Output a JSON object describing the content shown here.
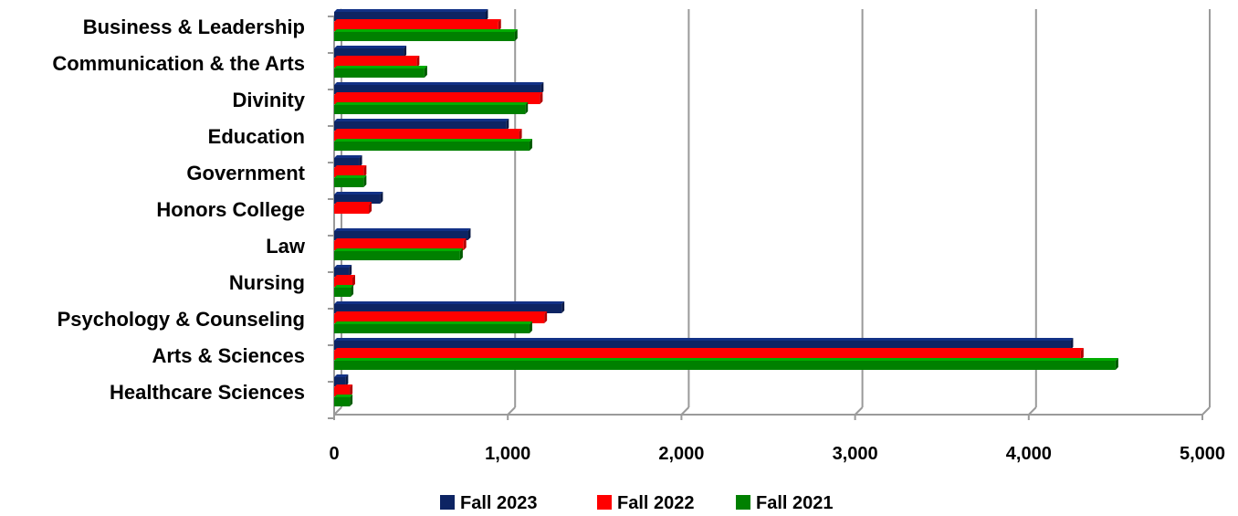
{
  "chart_data": {
    "type": "bar",
    "orientation": "horizontal",
    "title": "",
    "xlabel": "",
    "ylabel": "",
    "categories": [
      "Business & Leadership",
      "Communication & the Arts",
      "Divinity",
      "Education",
      "Government",
      "Honors College",
      "Law",
      "Nursing",
      "Psychology & Counseling",
      "Arts & Sciences",
      "Healthcare Sciences"
    ],
    "series": [
      {
        "name": "Fall 2023",
        "color": "#0d2463",
        "values": [
          870,
          400,
          1190,
          990,
          145,
          265,
          770,
          85,
          1310,
          4240,
          65
        ]
      },
      {
        "name": "Fall 2022",
        "color": "#ff0000",
        "values": [
          945,
          475,
          1185,
          1065,
          170,
          200,
          745,
          105,
          1210,
          4300,
          90
        ]
      },
      {
        "name": "Fall 2021",
        "color": "#008000",
        "values": [
          1040,
          520,
          1100,
          1125,
          170,
          0,
          725,
          95,
          1125,
          4500,
          90
        ]
      }
    ],
    "xlim": [
      0,
      5000
    ],
    "xticks": [
      0,
      1000,
      2000,
      3000,
      4000,
      5000
    ],
    "xtick_labels": [
      "0",
      "1,000",
      "2,000",
      "3,000",
      "4,000",
      "5,000"
    ],
    "grid": "vertical",
    "legend": "bottom-center"
  }
}
